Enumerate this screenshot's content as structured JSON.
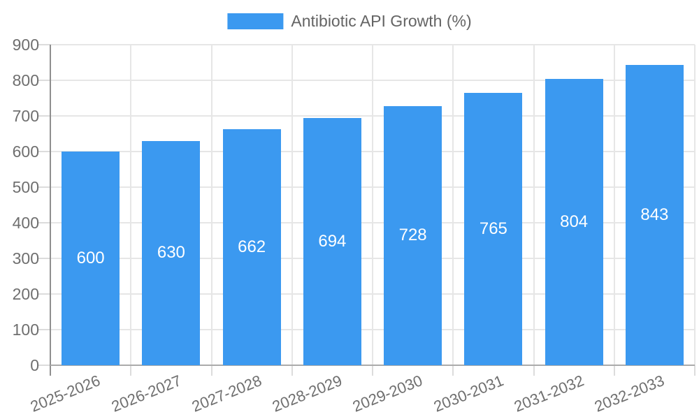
{
  "legend": {
    "label": "Antibiotic API Growth (%)"
  },
  "colors": {
    "bar": "#3b99f0",
    "grid": "#e6e6e6",
    "axis_dark": "#8f8f8f",
    "axis_light": "#ababab",
    "tick_mark": "#dcdcdc",
    "tick_text": "#6f6f6f",
    "legend_text": "#646464",
    "value_text": "#ffffff"
  },
  "chart_data": {
    "type": "bar",
    "title": "Antibiotic API Growth (%)",
    "categories": [
      "2025-2026",
      "2026-2027",
      "2027-2028",
      "2028-2029",
      "2029-2030",
      "2030-2031",
      "2031-2032",
      "2032-2033"
    ],
    "values": [
      600,
      630,
      662,
      694,
      728,
      765,
      804,
      843
    ],
    "xlabel": "",
    "ylabel": "",
    "ylim": [
      0,
      900
    ],
    "ytick_step": 100,
    "grid": true,
    "legend_position": "top-center",
    "bar_value_labels": true,
    "x_label_rotation_deg": -22
  }
}
